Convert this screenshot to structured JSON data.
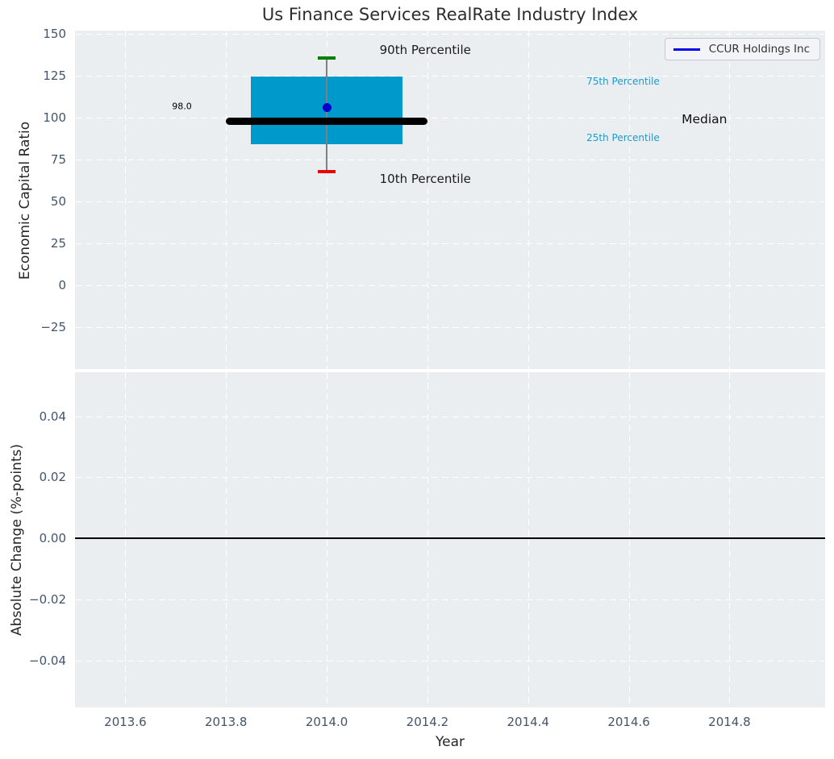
{
  "title": "Us Finance Services RealRate Industry Index",
  "colors": {
    "figure_bg": "#ffffff",
    "plot_bg": "#eaeef0",
    "grid": "#ffffff",
    "tick_label": "#44546b",
    "axis_label": "#262626",
    "title": "#2d2d2d",
    "box_fill": "#0099cc",
    "median_line": "#000000",
    "whisker": "#808080",
    "cap_90th": "#008000",
    "cap_10th": "#ee0000",
    "point": "#0000cd",
    "legend_line": "#0000ee",
    "percentile_label": "#1f9acb",
    "zero_line": "#000000"
  },
  "chart_data": [
    {
      "type": "boxplot",
      "title": "Us Finance Services RealRate Industry Index",
      "xlabel": "Year",
      "ylabel": "Economic Capital Ratio",
      "xlim": [
        2013.5,
        2014.99
      ],
      "ylim": [
        -50,
        152
      ],
      "grid": true,
      "legend_position": "upper right",
      "xtick_labels": [
        "2013.6",
        "2013.8",
        "2014.0",
        "2014.2",
        "2014.4",
        "2014.6",
        "2014.8"
      ],
      "xtick_values": [
        2013.6,
        2013.8,
        2014.0,
        2014.2,
        2014.4,
        2014.6,
        2014.8
      ],
      "ytick_labels": [
        "150",
        "125",
        "100",
        "75",
        "50",
        "25",
        "0",
        "−25"
      ],
      "ytick_values": [
        150,
        125,
        100,
        75,
        50,
        25,
        0,
        -25
      ],
      "box": {
        "x_center": 2014.0,
        "box_left": 2013.85,
        "box_right": 2014.15,
        "median_left": 2013.8,
        "median_right": 2014.2,
        "p10": 68,
        "p25": 84,
        "median": 98.0,
        "p75": 124.5,
        "p90": 135.5
      },
      "point": {
        "name": "CCUR Holdings Inc",
        "x": 2014.0,
        "y": 106.3
      },
      "legend": {
        "label": "CCUR Holdings Inc"
      },
      "annotations": [
        {
          "text": "90th Percentile",
          "x": 2014.105,
          "y": 140.5,
          "size": 15,
          "color": "#1a1a1a",
          "anchor": "left"
        },
        {
          "text": "10th Percentile",
          "x": 2014.105,
          "y": 63.5,
          "size": 15,
          "color": "#1a1a1a",
          "anchor": "left"
        },
        {
          "text": "98.0",
          "x": 2013.732,
          "y": 107,
          "size": 11,
          "color": "#000000",
          "anchor": "right"
        },
        {
          "text": "75th Percentile",
          "x": 2014.516,
          "y": 121.5,
          "size": 12,
          "color": "#1f9acb",
          "anchor": "left"
        },
        {
          "text": "Median",
          "x": 2014.705,
          "y": 99.3,
          "size": 15.5,
          "color": "#111111",
          "anchor": "left"
        },
        {
          "text": "25th Percentile",
          "x": 2014.516,
          "y": 87.8,
          "size": 12,
          "color": "#1f9acb",
          "anchor": "left"
        }
      ]
    },
    {
      "type": "line",
      "xlabel": "Year",
      "ylabel": "Absolute Change (%-points)",
      "xlim": [
        2013.5,
        2014.99
      ],
      "ylim": [
        -0.0553,
        0.0544
      ],
      "grid": true,
      "zero_line": 0.0,
      "series": [],
      "xtick_labels": [
        "2013.6",
        "2013.8",
        "2014.0",
        "2014.2",
        "2014.4",
        "2014.6",
        "2014.8"
      ],
      "xtick_values": [
        2013.6,
        2013.8,
        2014.0,
        2014.2,
        2014.4,
        2014.6,
        2014.8
      ],
      "ytick_labels": [
        "0.04",
        "0.02",
        "0.00",
        "−0.02",
        "−0.04"
      ],
      "ytick_values": [
        0.04,
        0.02,
        0.0,
        -0.02,
        -0.04
      ]
    }
  ]
}
